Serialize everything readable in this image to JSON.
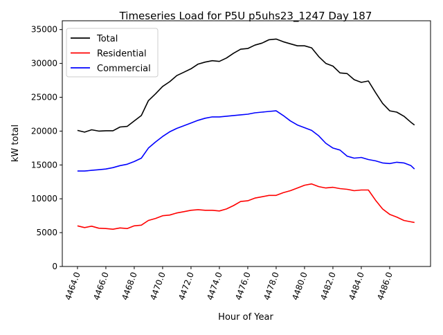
{
  "chart_data": {
    "type": "line",
    "title": "Timeseries Load for P5U p5uhs23_1247  Day 187",
    "xlabel": "Hour of Year",
    "ylabel": "kW total",
    "xlim": [
      4462.93,
      4488.88
    ],
    "ylim": [
      0,
      36300
    ],
    "xticks": [
      4464,
      4466,
      4468,
      4470,
      4472,
      4474,
      4476,
      4478,
      4480,
      4482,
      4484,
      4486
    ],
    "xtick_labels": [
      "4464.0",
      "4466.0",
      "4468.0",
      "4470.0",
      "4472.0",
      "4474.0",
      "4476.0",
      "4478.0",
      "4480.0",
      "4482.0",
      "4484.0",
      "4486.0"
    ],
    "yticks": [
      0,
      5000,
      10000,
      15000,
      20000,
      25000,
      30000,
      35000
    ],
    "ytick_labels": [
      "0",
      "5000",
      "10000",
      "15000",
      "20000",
      "25000",
      "30000",
      "35000"
    ],
    "grid": false,
    "legend_position": "top-left",
    "x": [
      4464,
      4464.5,
      4465,
      4465.5,
      4466,
      4466.5,
      4467,
      4467.5,
      4468,
      4468.5,
      4469,
      4469.5,
      4470,
      4470.5,
      4471,
      4471.5,
      4472,
      4472.5,
      4473,
      4473.5,
      4474,
      4474.5,
      4475,
      4475.5,
      4476,
      4476.5,
      4477,
      4477.5,
      4478,
      4478.5,
      4479,
      4479.5,
      4480,
      4480.5,
      4481,
      4481.5,
      4482,
      4482.5,
      4483,
      4483.5,
      4484,
      4484.5,
      4485,
      4485.5,
      4486,
      4486.5,
      4487,
      4487.5,
      4487.75
    ],
    "series": [
      {
        "name": "Total",
        "color": "#000000",
        "values": [
          20100,
          19850,
          20200,
          20000,
          20050,
          20050,
          20600,
          20700,
          21500,
          22300,
          24500,
          25500,
          26600,
          27300,
          28200,
          28700,
          29200,
          29900,
          30200,
          30400,
          30300,
          30800,
          31500,
          32100,
          32200,
          32700,
          33000,
          33500,
          33600,
          33200,
          32900,
          32600,
          32600,
          32300,
          31000,
          30000,
          29600,
          28600,
          28500,
          27600,
          27200,
          27400,
          25700,
          24100,
          23000,
          22800,
          22200,
          21300,
          20900
        ]
      },
      {
        "name": "Residential",
        "color": "#ff0000",
        "values": [
          6000,
          5750,
          5950,
          5650,
          5600,
          5500,
          5700,
          5600,
          6000,
          6100,
          6800,
          7100,
          7500,
          7600,
          7900,
          8100,
          8300,
          8400,
          8300,
          8300,
          8200,
          8500,
          9000,
          9600,
          9700,
          10100,
          10300,
          10500,
          10500,
          10900,
          11200,
          11600,
          12000,
          12200,
          11800,
          11600,
          11700,
          11500,
          11400,
          11200,
          11300,
          11300,
          9800,
          8500,
          7700,
          7300,
          6800,
          6600,
          6500
        ]
      },
      {
        "name": "Commercial",
        "color": "#0000ff",
        "values": [
          14100,
          14100,
          14200,
          14300,
          14400,
          14600,
          14900,
          15100,
          15500,
          16000,
          17500,
          18400,
          19200,
          19900,
          20400,
          20800,
          21200,
          21600,
          21900,
          22100,
          22100,
          22200,
          22300,
          22400,
          22500,
          22700,
          22800,
          22900,
          23000,
          22300,
          21500,
          20900,
          20500,
          20100,
          19300,
          18200,
          17500,
          17200,
          16300,
          16000,
          16100,
          15800,
          15600,
          15300,
          15200,
          15400,
          15300,
          14900,
          14400
        ]
      }
    ]
  }
}
